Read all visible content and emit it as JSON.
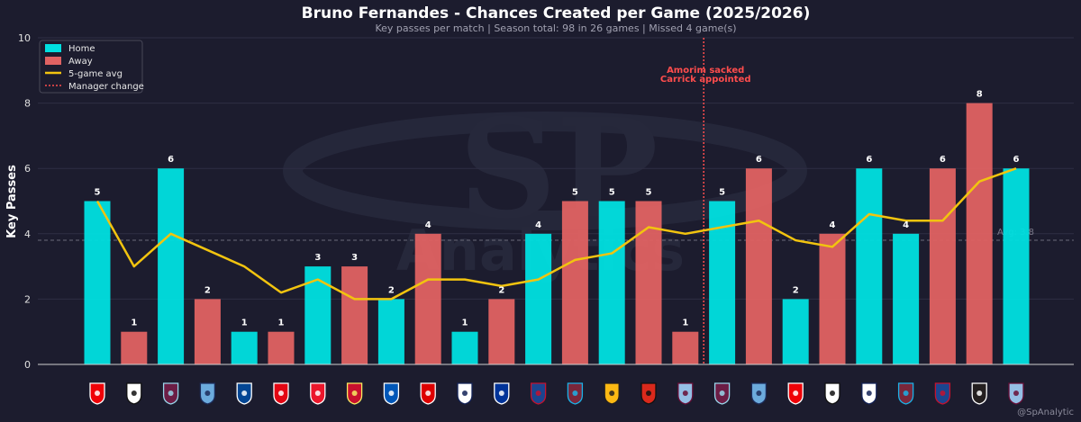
{
  "chart_data": {
    "type": "bar",
    "title": "Bruno Fernandes - Chances Created per Game (2025/2026)",
    "subtitle": "Key passes per match  |  Season total: 98 in 26 games  |  Missed 4 game(s)",
    "ylabel": "Key Passes",
    "xlabel": "",
    "ylim": [
      0,
      10
    ],
    "yticks": [
      "0",
      "2",
      "4",
      "6",
      "8",
      "10"
    ],
    "grid": true,
    "legend_position": "top-left",
    "legend": {
      "home": "Home",
      "away": "Away",
      "avg": "5-game avg",
      "manager": "Manager change"
    },
    "colors": {
      "home": "#00e0e0",
      "away": "#e06262",
      "avg_line": "#f2c40f",
      "manager_line": "#ff4d4d",
      "season_avg_line": "#6a6a7a"
    },
    "opponents": [
      "Arsenal",
      "Fulham",
      "Burnley",
      "Man City",
      "Chelsea",
      "Brentford",
      "Sunderland",
      "Liverpool",
      "Brighton",
      "Nottingham Forest",
      "Tottenham",
      "Everton",
      "Crystal Palace",
      "West Ham",
      "Wolves",
      "Bournemouth",
      "Aston Villa",
      "Burnley",
      "Man City",
      "Arsenal",
      "Fulham",
      "Tottenham",
      "West Ham",
      "Crystal Palace",
      "Newcastle",
      "Aston Villa"
    ],
    "venue": [
      "home",
      "away",
      "home",
      "away",
      "home",
      "away",
      "home",
      "away",
      "home",
      "away",
      "home",
      "away",
      "home",
      "away",
      "home",
      "away",
      "away",
      "home",
      "away",
      "home",
      "away",
      "home",
      "home",
      "away",
      "away",
      "home"
    ],
    "values": [
      5,
      1,
      6,
      2,
      1,
      1,
      3,
      3,
      2,
      4,
      1,
      2,
      4,
      5,
      5,
      5,
      1,
      5,
      6,
      2,
      4,
      6,
      4,
      6,
      8,
      6
    ],
    "rolling_avg": [
      5,
      3,
      4,
      3.5,
      3,
      2.2,
      2.6,
      2,
      2,
      2.6,
      2.6,
      2.4,
      2.6,
      3.2,
      3.4,
      4.2,
      4,
      4.2,
      4.4,
      3.8,
      3.6,
      4.6,
      4.4,
      4.4,
      5.6,
      6
    ],
    "season_avg": 3.8,
    "season_avg_label": "Avg: 3.8",
    "manager_change_after_index": 16,
    "annotation": [
      "Amorim sacked",
      "Carrick appointed"
    ],
    "watermark": "SP Analytics",
    "credit": "@SpAnalytic"
  }
}
